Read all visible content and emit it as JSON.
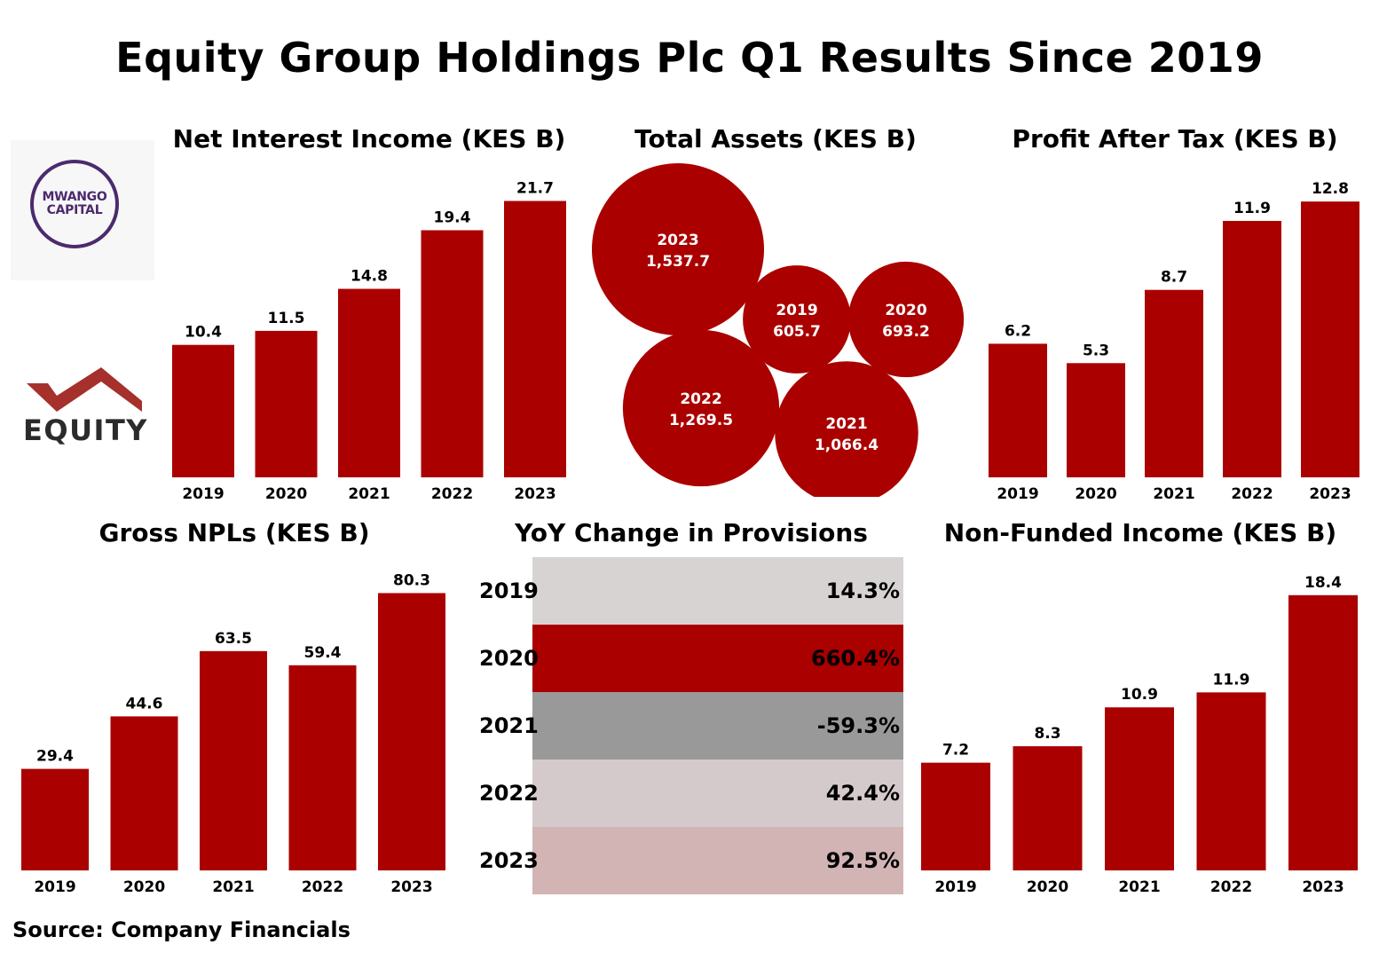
{
  "title": "Equity Group Holdings Plc Q1 Results Since 2019",
  "source": "Source: Company Financials",
  "logos": {
    "mwango_line1": "MWANGO",
    "mwango_line2": "CAPITAL",
    "equity": "EQUITY"
  },
  "colors": {
    "bar": "#aa0000",
    "bubble": "#aa0000",
    "bar_label": "#000000"
  },
  "chart_data": [
    {
      "id": "nii",
      "type": "bar",
      "title": "Net Interest Income (KES B)",
      "categories": [
        "2019",
        "2020",
        "2021",
        "2022",
        "2023"
      ],
      "values": [
        10.4,
        11.5,
        14.8,
        19.4,
        21.7
      ],
      "value_labels": [
        "10.4",
        "11.5",
        "14.8",
        "19.4",
        "21.7"
      ],
      "ylim": [
        0,
        22.5
      ]
    },
    {
      "id": "assets",
      "type": "bubble",
      "title": "Total Assets (KES B)",
      "categories": [
        "2023",
        "2019",
        "2020",
        "2022",
        "2021"
      ],
      "values": [
        1537.7,
        605.7,
        693.2,
        1269.5,
        1066.4
      ],
      "value_labels": [
        "1,537.7",
        "605.7",
        "693.2",
        "1,269.5",
        "1,066.4"
      ]
    },
    {
      "id": "pat",
      "type": "bar",
      "title": "Profit After Tax (KES B)",
      "categories": [
        "2019",
        "2020",
        "2021",
        "2022",
        "2023"
      ],
      "values": [
        6.2,
        5.3,
        8.7,
        11.9,
        12.8
      ],
      "value_labels": [
        "6.2",
        "5.3",
        "8.7",
        "11.9",
        "12.8"
      ],
      "ylim": [
        0,
        13.3
      ]
    },
    {
      "id": "npl",
      "type": "bar",
      "title": "Gross NPLs (KES B)",
      "categories": [
        "2019",
        "2020",
        "2021",
        "2022",
        "2023"
      ],
      "values": [
        29.4,
        44.6,
        63.5,
        59.4,
        80.3
      ],
      "value_labels": [
        "29.4",
        "44.6",
        "63.5",
        "59.4",
        "80.3"
      ],
      "ylim": [
        0,
        83.5
      ]
    },
    {
      "id": "prov",
      "type": "table",
      "title": "YoY Change in Provisions",
      "categories": [
        "2019",
        "2020",
        "2021",
        "2022",
        "2023"
      ],
      "values": [
        14.3,
        660.4,
        -59.3,
        42.4,
        92.5
      ],
      "value_labels": [
        "14.3%",
        "660.4%",
        "-59.3%",
        "42.4%",
        "92.5%"
      ],
      "row_colors": [
        "#d7d3d3",
        "#aa0000",
        "#999999",
        "#d5cacb",
        "#d2b4b5"
      ]
    },
    {
      "id": "nfi",
      "type": "bar",
      "title": "Non-Funded Income (KES B)",
      "categories": [
        "2019",
        "2020",
        "2021",
        "2022",
        "2023"
      ],
      "values": [
        7.2,
        8.3,
        10.9,
        11.9,
        18.4
      ],
      "value_labels": [
        "7.2",
        "8.3",
        "10.9",
        "11.9",
        "18.4"
      ],
      "ylim": [
        0,
        19.1
      ]
    }
  ]
}
